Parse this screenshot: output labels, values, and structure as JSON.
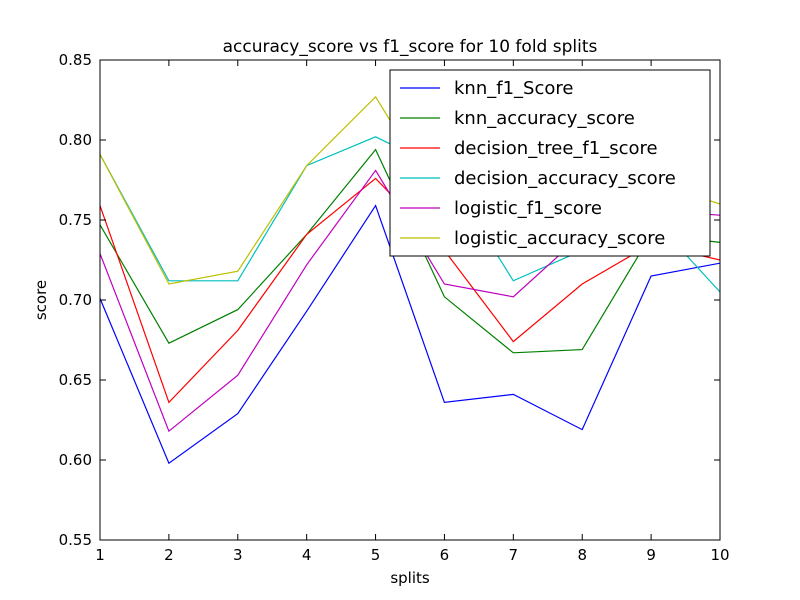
{
  "chart_data": {
    "type": "line",
    "title": "accuracy_score vs f1_score for 10 fold splits",
    "xlabel": "splits",
    "ylabel": "score",
    "x": [
      1,
      2,
      3,
      4,
      5,
      6,
      7,
      8,
      9,
      10
    ],
    "xlim": [
      1,
      10
    ],
    "ylim": [
      0.55,
      0.85
    ],
    "xticks": [
      "1",
      "2",
      "3",
      "4",
      "5",
      "6",
      "7",
      "8",
      "9",
      "10"
    ],
    "yticks": [
      "0.55",
      "0.60",
      "0.65",
      "0.70",
      "0.75",
      "0.80",
      "0.85"
    ],
    "grid": false,
    "legend_position": "upper-right",
    "series": [
      {
        "name": "knn_f1_Score",
        "color": "#0000ff",
        "values": [
          0.701,
          0.598,
          0.629,
          0.693,
          0.759,
          0.636,
          0.641,
          0.619,
          0.715,
          0.723
        ]
      },
      {
        "name": "knn_accuracy_score",
        "color": "#008000",
        "values": [
          0.747,
          0.673,
          0.694,
          0.741,
          0.794,
          0.702,
          0.667,
          0.669,
          0.741,
          0.736
        ]
      },
      {
        "name": "decision_tree_f1_score",
        "color": "#ff0000",
        "values": [
          0.759,
          0.636,
          0.681,
          0.741,
          0.776,
          0.731,
          0.674,
          0.71,
          0.735,
          0.725
        ]
      },
      {
        "name": "decision_accuracy_score",
        "color": "#00bfbf",
        "values": [
          0.791,
          0.712,
          0.712,
          0.784,
          0.802,
          0.781,
          0.712,
          0.731,
          0.752,
          0.705
        ]
      },
      {
        "name": "logistic_f1_score",
        "color": "#bf00bf",
        "values": [
          0.729,
          0.618,
          0.653,
          0.722,
          0.781,
          0.71,
          0.702,
          0.741,
          0.756,
          0.753
        ]
      },
      {
        "name": "logistic_accuracy_score",
        "color": "#bfbf00",
        "values": [
          0.791,
          0.71,
          0.718,
          0.784,
          0.827,
          0.757,
          0.739,
          0.759,
          0.774,
          0.76
        ]
      }
    ]
  }
}
